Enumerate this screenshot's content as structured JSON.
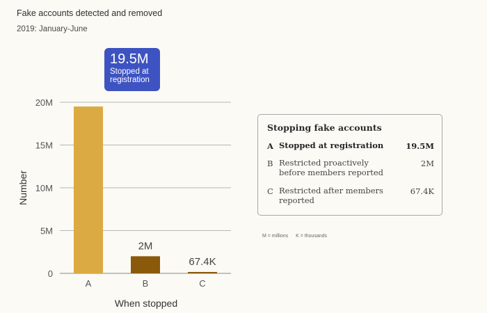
{
  "header": {
    "title": "Fake accounts detected and removed",
    "subtitle": "2019: January-June"
  },
  "callout": {
    "value": "19.5M",
    "line1": "Stopped at",
    "line2": "registration",
    "color": "#3e53c2"
  },
  "legend": {
    "title": "Stopping fake accounts",
    "rows": [
      {
        "key": "A",
        "line1": "Stopped at registration",
        "line2": "",
        "value": "19.5M"
      },
      {
        "key": "B",
        "line1": "Restricted proactively",
        "line2": "before members reported",
        "value": "2M"
      },
      {
        "key": "C",
        "line1": "Restricted after members",
        "line2": "reported",
        "value": "67.4K"
      }
    ]
  },
  "units_note": {
    "m": "M = millions",
    "k": "K = thousands"
  },
  "chart_data": {
    "type": "bar",
    "title": "Fake accounts detected and removed",
    "subtitle": "2019: January-June",
    "xlabel": "When stopped",
    "ylabel": "Number",
    "categories": [
      "A",
      "B",
      "C"
    ],
    "values": [
      19500000,
      2000000,
      67400
    ],
    "data_labels": [
      "",
      "2M",
      "67.4K"
    ],
    "colors": [
      "#dcaa42",
      "#8a5a0a",
      "#8a5a0a"
    ],
    "ylim": [
      0,
      20000000
    ],
    "yticks": [
      0,
      5000000,
      10000000,
      15000000,
      20000000
    ],
    "ytick_labels": [
      "0",
      "5M",
      "10M",
      "15M",
      "20M"
    ],
    "grid": true
  }
}
